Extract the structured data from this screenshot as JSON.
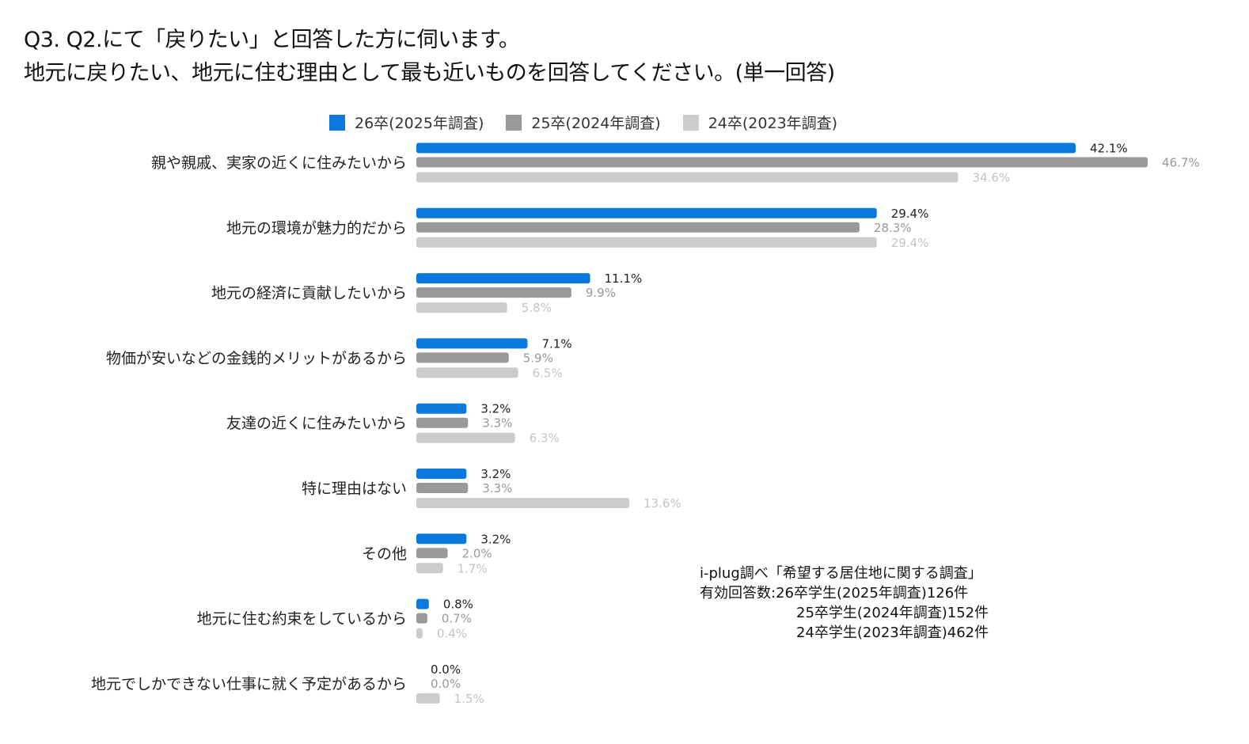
{
  "title": {
    "line1": "Q3. Q2.にて「戻りたい」と回答した方に伺います。",
    "line2": "地元に戻りたい、地元に住む理由として最も近いものを回答してください。(単一回答)"
  },
  "chart_data": {
    "type": "bar",
    "orientation": "horizontal",
    "categories": [
      "親や親戚、実家の近くに住みたいから",
      "地元の環境が魅力的だから",
      "地元の経済に貢献したいから",
      "物価が安いなどの金銭的メリットがあるから",
      "友達の近くに住みたいから",
      "特に理由はない",
      "その他",
      "地元に住む約束をしているから",
      "地元でしかできない仕事に就く予定があるから"
    ],
    "series": [
      {
        "name": "26卒(2025年調査)",
        "color": "#0a78dc",
        "label_color": "#222222",
        "values": [
          42.1,
          29.4,
          11.1,
          7.1,
          3.2,
          3.2,
          3.2,
          0.8,
          0.0
        ]
      },
      {
        "name": "25卒(2024年調査)",
        "color": "#999999",
        "label_color": "#999999",
        "values": [
          46.7,
          28.3,
          9.9,
          5.9,
          3.3,
          3.3,
          2.0,
          0.7,
          0.0
        ]
      },
      {
        "name": "24卒(2023年調査)",
        "color": "#cccccc",
        "label_color": "#c4c4c4",
        "values": [
          34.6,
          29.4,
          5.8,
          6.5,
          6.3,
          13.6,
          1.7,
          0.4,
          1.5
        ]
      }
    ],
    "value_suffix": "%",
    "xlim": [
      0,
      50
    ],
    "grid": false,
    "legend_position": "top"
  },
  "note": {
    "line1": "i-plug調べ「希望する居住地に関する調査」",
    "line2": "有効回答数:26卒学生(2025年調査)126件",
    "line3": "25卒学生(2024年調査)152件",
    "line4": "24卒学生(2023年調査)462件"
  }
}
